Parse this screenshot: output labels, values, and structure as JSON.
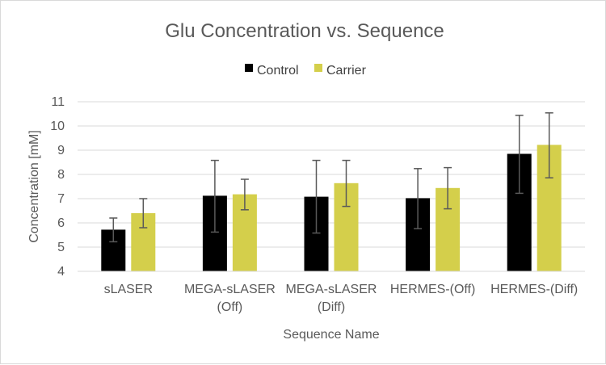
{
  "chart_data": {
    "type": "bar",
    "title": "Glu Concentration vs. Sequence",
    "xlabel": "Sequence Name",
    "ylabel": "Concentration [mM]",
    "ylim": [
      4,
      11
    ],
    "yticks": [
      "4",
      "5",
      "6",
      "7",
      "8",
      "9",
      "10",
      "11"
    ],
    "grid": true,
    "legend_position": "top",
    "categories": [
      [
        "sLASER"
      ],
      [
        "MEGA-sLASER",
        "(Off)"
      ],
      [
        "MEGA-sLASER",
        "(Diff)"
      ],
      [
        "HERMES-(Off)"
      ],
      [
        "HERMES-(Diff)"
      ]
    ],
    "series": [
      {
        "name": "Control",
        "color": "#000000",
        "values": [
          5.72,
          7.12,
          7.08,
          7.02,
          8.85
        ],
        "error_low": [
          5.22,
          5.62,
          5.58,
          5.76,
          7.22
        ],
        "error_high": [
          6.2,
          8.58,
          8.58,
          8.24,
          10.44
        ]
      },
      {
        "name": "Carrier",
        "color": "#d4cf4b",
        "values": [
          6.4,
          7.18,
          7.64,
          7.44,
          9.22
        ],
        "error_low": [
          5.8,
          6.54,
          6.68,
          6.58,
          7.86
        ],
        "error_high": [
          7.0,
          7.8,
          8.58,
          8.28,
          10.54
        ]
      }
    ]
  }
}
